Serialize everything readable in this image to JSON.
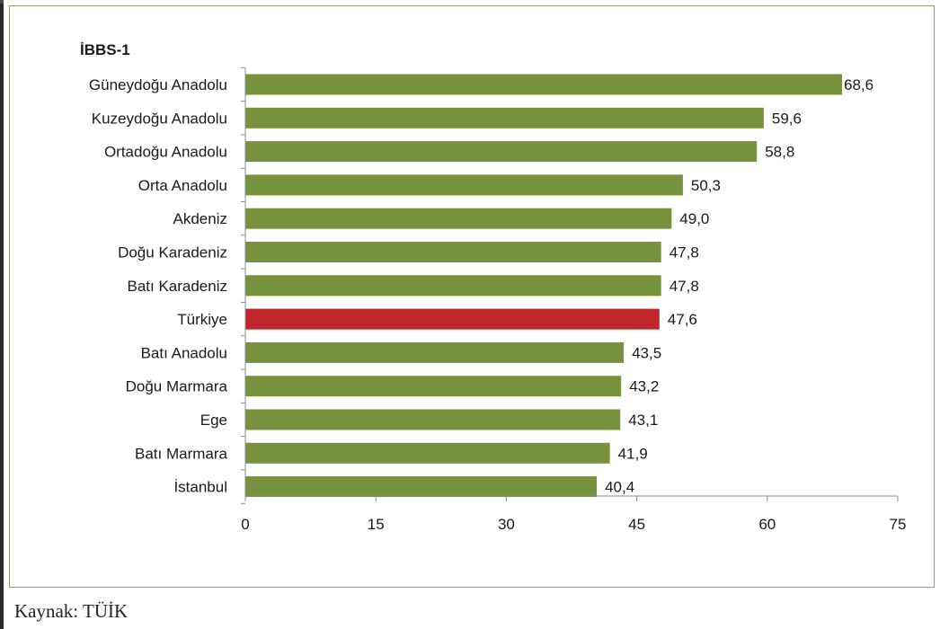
{
  "chart_data": {
    "type": "bar",
    "orientation": "horizontal",
    "title": "İBBS-1",
    "categories": [
      "Güneydoğu Anadolu",
      "Kuzeydoğu Anadolu",
      "Ortadoğu Anadolu",
      "Orta Anadolu",
      "Akdeniz",
      "Doğu Karadeniz",
      "Batı Karadeniz",
      "Türkiye",
      "Batı Anadolu",
      "Doğu Marmara",
      "Ege",
      "Batı Marmara",
      "İstanbul"
    ],
    "values": [
      68.6,
      59.6,
      58.8,
      50.3,
      49.0,
      47.8,
      47.8,
      47.6,
      43.5,
      43.2,
      43.1,
      41.9,
      40.4
    ],
    "value_labels": [
      "68,6",
      "59,6",
      "58,8",
      "50,3",
      "49,0",
      "47,8",
      "47,8",
      "47,6",
      "43,5",
      "43,2",
      "43,1",
      "41,9",
      "40,4"
    ],
    "xlim": [
      0,
      75
    ],
    "xticks": [
      0,
      15,
      30,
      45,
      60,
      75
    ],
    "xlabel": "",
    "ylabel": "",
    "grid": false,
    "legend": "none",
    "colors": {
      "bar": "#76923c",
      "highlight": "#c0262c",
      "highlight_category": "Türkiye",
      "axis": "#8c8c8c",
      "frame": "#8aa06a"
    }
  },
  "source": "Kaynak: TÜİK"
}
